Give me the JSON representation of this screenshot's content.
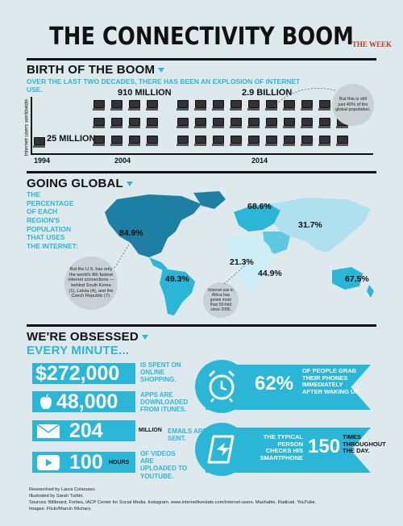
{
  "header": {
    "title": "THE CONNECTIVITY BOOM",
    "brand": "THE WEEK"
  },
  "birth": {
    "heading": "BIRTH OF THE BOOM",
    "subtitle": "OVER THE LAST TWO DECADES, THERE HAS BEEN AN EXPLOSION OF INTERNET USE.",
    "axis_label": "Internet users worldwide",
    "years": [
      "1994",
      "2004",
      "2014"
    ],
    "values": [
      "25 MILLION",
      "910 MILLION",
      "2.9 BILLION"
    ],
    "note": "But this is still just 40% of the global population."
  },
  "global": {
    "heading": "GOING GLOBAL",
    "subtitle": "THE PERCENTAGE OF EACH REGION'S POPULATION THAT USES THE INTERNET:",
    "regions": {
      "north_america": "84.9%",
      "south_america": "49.3%",
      "europe": "68.6%",
      "asia": "31.7%",
      "middle_east": "44.9%",
      "africa": "21.3%",
      "oceania": "67.5%"
    },
    "note_us": "But the U.S. has only the world's 8th fastest internet connections — behind South Korea (1), Latvia (4), and the Czech Republic (7).",
    "note_africa": "Internet use in Africa has grown more than 50-fold since 2000."
  },
  "obsessed": {
    "heading": "WE'RE OBSESSED",
    "subheading": "EVERY MINUTE...",
    "stats": [
      {
        "icon": "dollar-icon",
        "value": "$272,000",
        "unit": "",
        "desc": "IS SPENT ON ONLINE SHOPPING."
      },
      {
        "icon": "apple-icon",
        "value": "48,000",
        "unit": "",
        "desc": "APPS ARE DOWNLOADED FROM iTUNES."
      },
      {
        "icon": "envelope-icon",
        "value": "204",
        "unit": "MILLION",
        "desc": "EMAILS ARE SENT."
      },
      {
        "icon": "play-icon",
        "value": "100",
        "unit": "HOURS",
        "desc": "OF VIDEOS ARE UPLOADED TO YOUTUBE."
      }
    ],
    "phones": {
      "value": "62%",
      "desc": "OF PEOPLE GRAB THEIR PHONES IMMEDIATELY AFTER WAKING UP."
    },
    "checks": {
      "desc": "THE TYPICAL PERSON CHECKS HIS SMARTPHONE",
      "value": "150",
      "suffix": "TIMES THROUGHOUT THE DAY."
    }
  },
  "credits": {
    "researched": "Researched by Laura Colarusso.",
    "illustrated": "Illustrated by Sarah Turbin.",
    "sources": "Sources: Billboard, Forbes, IACP Center for Social Media, Instagram, www.internetlivestats.com/internet-users, Mashable, Radicati, YouTube.",
    "images": "Images: Flickr/Marcin Wichary."
  },
  "colors": {
    "accent": "#2bb6d8",
    "background": "#dde9ec"
  }
}
